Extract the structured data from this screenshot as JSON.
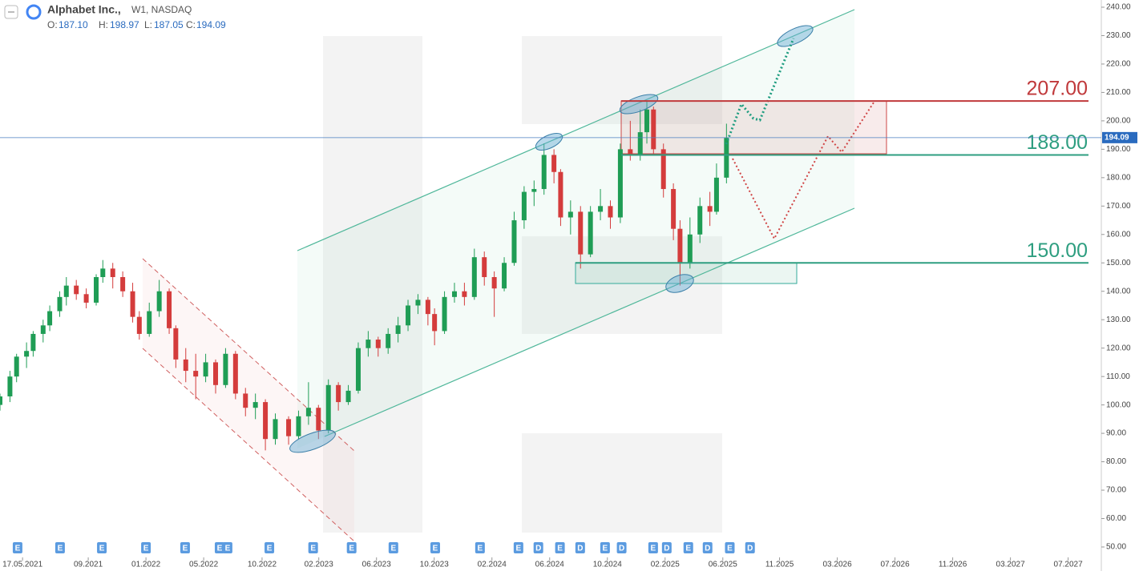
{
  "header": {
    "name": "Alphabet Inc.,",
    "info": "W1, NASDAQ",
    "ohlc": [
      {
        "key": "O:",
        "value": "187.10"
      },
      {
        "key": "H:",
        "value": "198.97"
      },
      {
        "key": "L:",
        "value": "187.05"
      },
      {
        "key": "C:",
        "value": "194.09"
      }
    ]
  },
  "chart_data": {
    "type": "candlestick",
    "xlim": [
      0,
      332
    ],
    "xticks": [
      {
        "value": 6.8,
        "label": "17.05.2021"
      },
      {
        "value": 26.6,
        "label": "09.2021"
      },
      {
        "value": 44,
        "label": "01.2022"
      },
      {
        "value": 61.4,
        "label": "05.2022"
      },
      {
        "value": 79,
        "label": "10.2022"
      },
      {
        "value": 96.1,
        "label": "02.2023"
      },
      {
        "value": 113.5,
        "label": "06.2023"
      },
      {
        "value": 130.9,
        "label": "10.2023"
      },
      {
        "value": 148.3,
        "label": "02.2024"
      },
      {
        "value": 165.7,
        "label": "06.2024"
      },
      {
        "value": 183.1,
        "label": "10.2024"
      },
      {
        "value": 200.5,
        "label": "02.2025"
      },
      {
        "value": 217.9,
        "label": "06.2025"
      },
      {
        "value": 235,
        "label": "11.2025"
      },
      {
        "value": 252.4,
        "label": "03.2026"
      },
      {
        "value": 269.8,
        "label": "07.2026"
      },
      {
        "value": 287.2,
        "label": "11.2026"
      },
      {
        "value": 304.6,
        "label": "03.2027"
      },
      {
        "value": 322,
        "label": "07.2027"
      }
    ],
    "ylim": [
      50,
      240
    ],
    "yticks": [
      {
        "value": 240,
        "label": "240.00"
      },
      {
        "value": 230,
        "label": "230.00"
      },
      {
        "value": 220,
        "label": "220.00"
      },
      {
        "value": 210,
        "label": "210.00"
      },
      {
        "value": 200,
        "label": "200.00"
      },
      {
        "value": 190,
        "label": "190.00"
      },
      {
        "value": 180,
        "label": "180.00"
      },
      {
        "value": 170,
        "label": "170.00"
      },
      {
        "value": 160,
        "label": "160.00"
      },
      {
        "value": 150,
        "label": "150.00"
      },
      {
        "value": 140,
        "label": "140.00"
      },
      {
        "value": 130,
        "label": "130.00"
      },
      {
        "value": 120,
        "label": "120.00"
      },
      {
        "value": 110,
        "label": "110.00"
      },
      {
        "value": 100,
        "label": "100.00"
      },
      {
        "value": 90,
        "label": "90.00"
      },
      {
        "value": 80,
        "label": "80.00"
      },
      {
        "value": 70,
        "label": "70.00"
      },
      {
        "value": 60,
        "label": "60.00"
      },
      {
        "value": 50,
        "label": "50.00"
      }
    ],
    "up_color": "#1f9d55",
    "down_color": "#d43c3c",
    "x": [
      0,
      3,
      5,
      8,
      10,
      13,
      15,
      18,
      20,
      23,
      26,
      29,
      31,
      34,
      37,
      40,
      42,
      45,
      48,
      51,
      53,
      56,
      59,
      62,
      65,
      68,
      71,
      74,
      77,
      80,
      83,
      87,
      90,
      93,
      96,
      99,
      102,
      105,
      108,
      111,
      114,
      117,
      120,
      123,
      126,
      129,
      131,
      134,
      137,
      140,
      143,
      146,
      149,
      152,
      155,
      158,
      161,
      164,
      167,
      169,
      172,
      175,
      178,
      181,
      184,
      187,
      190,
      193,
      195,
      197,
      200,
      203,
      205,
      208,
      211,
      214,
      216,
      219
    ],
    "open": [
      100,
      103,
      110,
      117,
      119,
      125,
      128,
      133,
      138,
      142,
      139,
      136,
      145,
      148,
      145,
      140,
      131,
      125,
      133,
      140,
      127,
      116,
      112,
      110,
      115,
      107,
      118,
      104,
      99,
      101,
      88,
      95,
      89,
      96,
      99,
      91,
      107,
      101,
      105,
      120,
      123,
      120,
      125,
      128,
      135,
      137,
      132,
      126,
      138,
      140,
      138,
      152,
      145,
      141,
      150,
      165,
      175,
      176,
      188,
      182,
      166,
      168,
      153,
      168,
      170,
      166,
      190,
      188,
      196,
      204,
      190,
      176,
      162,
      150,
      160,
      170,
      168,
      180
    ],
    "high": [
      104,
      112,
      118,
      122,
      126,
      130,
      135,
      140,
      145,
      144,
      141,
      146,
      151,
      150,
      147,
      143,
      133,
      136,
      144,
      141,
      128,
      120,
      118,
      118,
      116,
      120,
      119,
      106,
      104,
      102,
      97,
      96,
      98,
      108,
      100,
      109,
      108,
      107,
      122,
      126,
      124,
      127,
      131,
      137,
      139,
      138,
      134,
      140,
      143,
      143,
      155,
      154,
      147,
      152,
      168,
      177,
      179,
      192,
      190,
      183,
      172,
      170,
      170,
      176,
      172,
      192,
      200,
      204,
      207,
      205,
      192,
      178,
      165,
      166,
      173,
      175,
      185,
      199
    ],
    "low": [
      98,
      101,
      108,
      113,
      117,
      122,
      126,
      131,
      135,
      137,
      134,
      135,
      143,
      141,
      138,
      129,
      123,
      124,
      131,
      125,
      113,
      108,
      102,
      108,
      104,
      106,
      102,
      96,
      95,
      84,
      86,
      86,
      88,
      93,
      88,
      90,
      98,
      100,
      104,
      117,
      117,
      118,
      122,
      126,
      132,
      128,
      121,
      125,
      136,
      135,
      137,
      142,
      131,
      140,
      149,
      162,
      170,
      174,
      178,
      163,
      160,
      148,
      152,
      165,
      162,
      164,
      186,
      186,
      192,
      188,
      173,
      158,
      142,
      148,
      157,
      163,
      167,
      178
    ],
    "close": [
      103,
      110,
      117,
      119,
      125,
      128,
      133,
      138,
      142,
      139,
      136,
      145,
      148,
      145,
      140,
      131,
      125,
      133,
      140,
      127,
      116,
      112,
      110,
      115,
      107,
      118,
      104,
      99,
      101,
      88,
      95,
      89,
      96,
      99,
      91,
      107,
      101,
      105,
      120,
      123,
      120,
      125,
      128,
      135,
      137,
      132,
      126,
      138,
      140,
      138,
      152,
      145,
      141,
      150,
      165,
      175,
      176,
      188,
      182,
      166,
      168,
      153,
      168,
      170,
      166,
      190,
      188,
      196,
      204,
      190,
      176,
      162,
      150,
      160,
      170,
      168,
      180,
      194
    ],
    "last_price": {
      "value": 194.09,
      "label": "194.09"
    },
    "levels": [
      {
        "value": 207,
        "label": "207.00",
        "color": "#c0393b"
      },
      {
        "value": 188,
        "label": "188.00",
        "color": "#2e9e80"
      },
      {
        "value": 150,
        "label": "150.00",
        "color": "#2e9e80"
      }
    ],
    "events": [
      {
        "x": 5.3,
        "label": "E"
      },
      {
        "x": 18.1,
        "label": "E"
      },
      {
        "x": 30.7,
        "label": "E"
      },
      {
        "x": 44,
        "label": "E"
      },
      {
        "x": 55.8,
        "label": "E"
      },
      {
        "x": 66.2,
        "label": "E"
      },
      {
        "x": 68.6,
        "label": "E"
      },
      {
        "x": 81.2,
        "label": "E"
      },
      {
        "x": 94.4,
        "label": "E"
      },
      {
        "x": 106,
        "label": "E"
      },
      {
        "x": 118.6,
        "label": "E"
      },
      {
        "x": 131.2,
        "label": "E"
      },
      {
        "x": 144.7,
        "label": "E"
      },
      {
        "x": 156.3,
        "label": "E"
      },
      {
        "x": 162.3,
        "label": "D"
      },
      {
        "x": 168.8,
        "label": "E"
      },
      {
        "x": 174.9,
        "label": "D"
      },
      {
        "x": 182.4,
        "label": "E"
      },
      {
        "x": 187.4,
        "label": "D"
      },
      {
        "x": 196.9,
        "label": "E"
      },
      {
        "x": 201,
        "label": "D"
      },
      {
        "x": 207.5,
        "label": "E"
      },
      {
        "x": 213.3,
        "label": "D"
      },
      {
        "x": 220,
        "label": "E"
      },
      {
        "x": 226.1,
        "label": "D"
      }
    ]
  }
}
